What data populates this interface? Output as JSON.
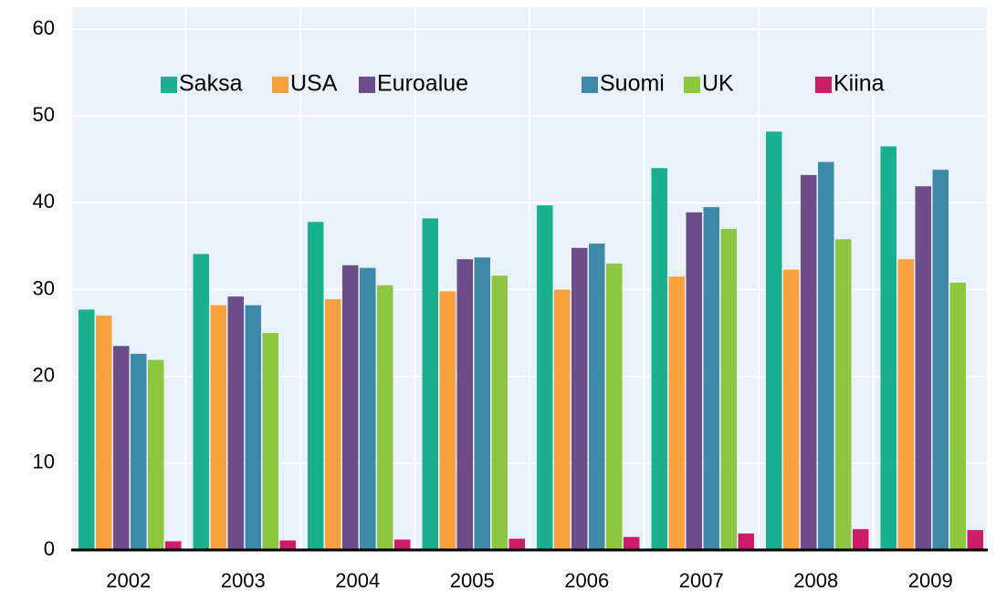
{
  "chart_data": {
    "type": "bar",
    "categories": [
      "2002",
      "2003",
      "2004",
      "2005",
      "2006",
      "2007",
      "2008",
      "2009"
    ],
    "series": [
      {
        "name": "Saksa",
        "color": "#1aaf8f",
        "values": [
          27.7,
          34.1,
          37.8,
          38.2,
          39.7,
          44.0,
          48.2,
          46.5
        ]
      },
      {
        "name": "USA",
        "color": "#f7a03c",
        "values": [
          27.0,
          28.2,
          28.9,
          29.8,
          30.0,
          31.5,
          32.3,
          33.5
        ]
      },
      {
        "name": "Euroalue",
        "color": "#6d4c8a",
        "values": [
          23.5,
          29.2,
          32.8,
          33.5,
          34.8,
          38.9,
          43.2,
          41.9
        ]
      },
      {
        "name": "Suomi",
        "color": "#3d8aa8",
        "values": [
          22.6,
          28.2,
          32.5,
          33.7,
          35.3,
          39.5,
          44.7,
          43.8
        ]
      },
      {
        "name": "UK",
        "color": "#8dc63f",
        "values": [
          21.9,
          25.0,
          30.5,
          31.6,
          33.0,
          37.0,
          35.8,
          30.8
        ]
      },
      {
        "name": "Kiina",
        "color": "#cc1d6a",
        "values": [
          1.0,
          1.1,
          1.2,
          1.3,
          1.5,
          1.9,
          2.4,
          2.3
        ]
      }
    ],
    "ylim": [
      0,
      60
    ],
    "yticks": [
      0,
      10,
      20,
      30,
      40,
      50,
      60
    ],
    "grid": true,
    "legend": "top"
  }
}
